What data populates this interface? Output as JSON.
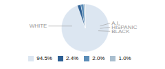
{
  "chart_data": {
    "type": "pie",
    "categories": [
      "WHITE",
      "A.I.",
      "HISPANIC",
      "BLACK"
    ],
    "values": [
      94.5,
      2.4,
      2.0,
      1.0
    ],
    "value_labels": [
      "94.5%",
      "2.4%",
      "2.0%",
      "1.0%"
    ],
    "colors": [
      "#dce6f1",
      "#2e6094",
      "#5b8db8",
      "#aabfcf"
    ],
    "legend": "bottom"
  }
}
